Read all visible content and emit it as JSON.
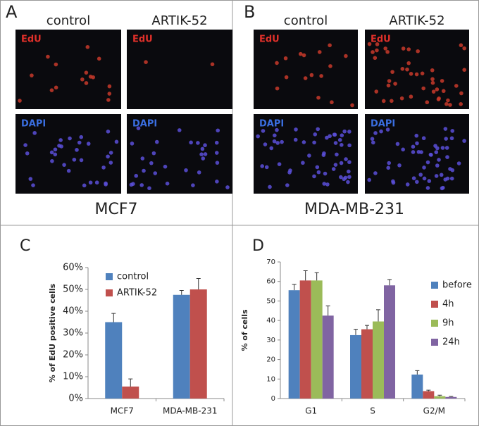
{
  "panels": {
    "a": {
      "label": "A",
      "columns": [
        "control",
        "ARTIK-52"
      ],
      "stains": [
        "EdU",
        "DAPI"
      ],
      "caption": "MCF7"
    },
    "b": {
      "label": "B",
      "columns": [
        "control",
        "ARTIK-52"
      ],
      "stains": [
        "EdU",
        "DAPI"
      ],
      "caption": "MDA-MB-231"
    }
  },
  "chart_data": [
    {
      "type": "bar",
      "panel_label": "C",
      "y_label": "% of EdU positive cells",
      "categories": [
        "MCF7",
        "MDA-MB-231"
      ],
      "series": [
        {
          "name": "control",
          "color": "#4f81bd",
          "values": [
            35,
            47.5
          ],
          "errors": [
            4,
            2
          ]
        },
        {
          "name": "ARTIK-52",
          "color": "#c0504d",
          "values": [
            5.5,
            50
          ],
          "errors": [
            3.5,
            5
          ]
        }
      ],
      "ylim": [
        0,
        60
      ],
      "yticks": [
        {
          "value": 0,
          "label": "0%"
        },
        {
          "value": 10,
          "label": "10%"
        },
        {
          "value": 20,
          "label": "20%"
        },
        {
          "value": 30,
          "label": "30%"
        },
        {
          "value": 40,
          "label": "40%"
        },
        {
          "value": 50,
          "label": "50%"
        },
        {
          "value": 60,
          "label": "60%"
        }
      ],
      "legend": "top-left"
    },
    {
      "type": "bar",
      "panel_label": "D",
      "y_label": "% of cells",
      "categories": [
        "G1",
        "S",
        "G2/M"
      ],
      "series": [
        {
          "name": "before",
          "color": "#4f81bd",
          "values": [
            55.5,
            32.5,
            12.3
          ],
          "errors": [
            3,
            3,
            2
          ]
        },
        {
          "name": "4h",
          "color": "#c0504d",
          "values": [
            60.5,
            35.5,
            3.8
          ],
          "errors": [
            5,
            2,
            0.5
          ]
        },
        {
          "name": "9h",
          "color": "#9bbb59",
          "values": [
            60.5,
            39.5,
            1.2
          ],
          "errors": [
            4,
            6,
            0.5
          ]
        },
        {
          "name": "24h",
          "color": "#8064a2",
          "values": [
            42.5,
            58,
            0.8
          ],
          "errors": [
            5,
            3,
            0.3
          ]
        }
      ],
      "ylim": [
        0,
        70
      ],
      "yticks": [
        0,
        10,
        20,
        30,
        40,
        50,
        60,
        70
      ],
      "legend": "right"
    }
  ]
}
